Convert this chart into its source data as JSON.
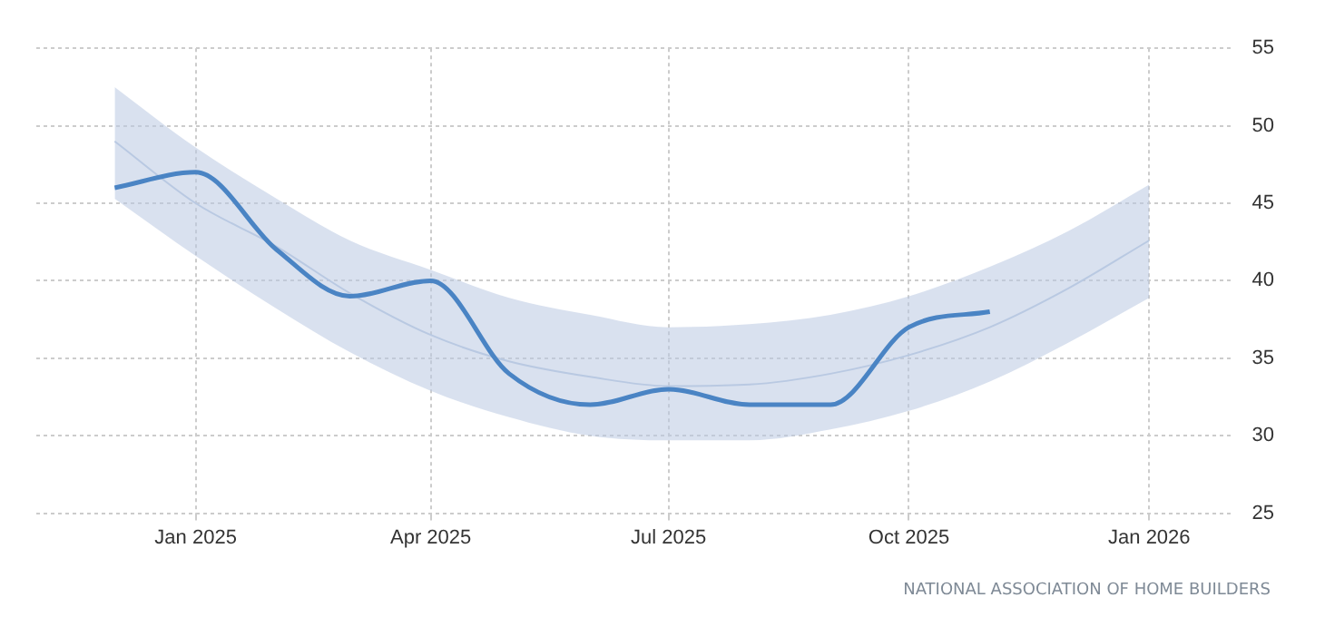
{
  "chart_data": {
    "type": "line",
    "xlim": [
      "2024-11-01",
      "2026-02-01"
    ],
    "xticks": [
      {
        "value": "2025-01",
        "label": "Jan 2025"
      },
      {
        "value": "2025-04",
        "label": "Apr 2025"
      },
      {
        "value": "2025-07",
        "label": "Jul 2025"
      },
      {
        "value": "2025-10",
        "label": "Oct 2025"
      },
      {
        "value": "2026-01",
        "label": "Jan 2026"
      }
    ],
    "ylim": [
      25,
      55
    ],
    "yticks": [
      25,
      30,
      35,
      40,
      45,
      50,
      55
    ],
    "grid": true,
    "legend": false,
    "series": [
      {
        "color": "#b9c9e2",
        "x": [
          "2024-12",
          "2025-01",
          "2025-02",
          "2025-03",
          "2025-04",
          "2025-05",
          "2025-06",
          "2025-07",
          "2025-08",
          "2025-09",
          "2025-10",
          "2025-11",
          "2025-12",
          "2026-01"
        ],
        "values": [
          49,
          45,
          42.2,
          39.2,
          36.5,
          34.8,
          33.8,
          33.2,
          33.3,
          34,
          35.2,
          37,
          39.5,
          42.6
        ],
        "lower": [
          45.3,
          41.6,
          38.2,
          35.4,
          32.9,
          31.2,
          30,
          29.7,
          29.7,
          30.4,
          31.6,
          33.5,
          36,
          38.9
        ],
        "upper": [
          52.5,
          48.6,
          45.3,
          42.6,
          40.7,
          38.9,
          37.8,
          37,
          37.2,
          37.8,
          39,
          40.9,
          43.2,
          46.2
        ]
      },
      {
        "color": "#4a84c4",
        "x": [
          "2024-12",
          "2025-01",
          "2025-02",
          "2025-03",
          "2025-04",
          "2025-05",
          "2025-06",
          "2025-07",
          "2025-08",
          "2025-09",
          "2025-10",
          "2025-11"
        ],
        "values": [
          46,
          47,
          42,
          39,
          40,
          34,
          32,
          33,
          32,
          32,
          37,
          38
        ]
      }
    ],
    "annotations": [
      "NATIONAL ASSOCIATION OF HOME BUILDERS"
    ]
  }
}
